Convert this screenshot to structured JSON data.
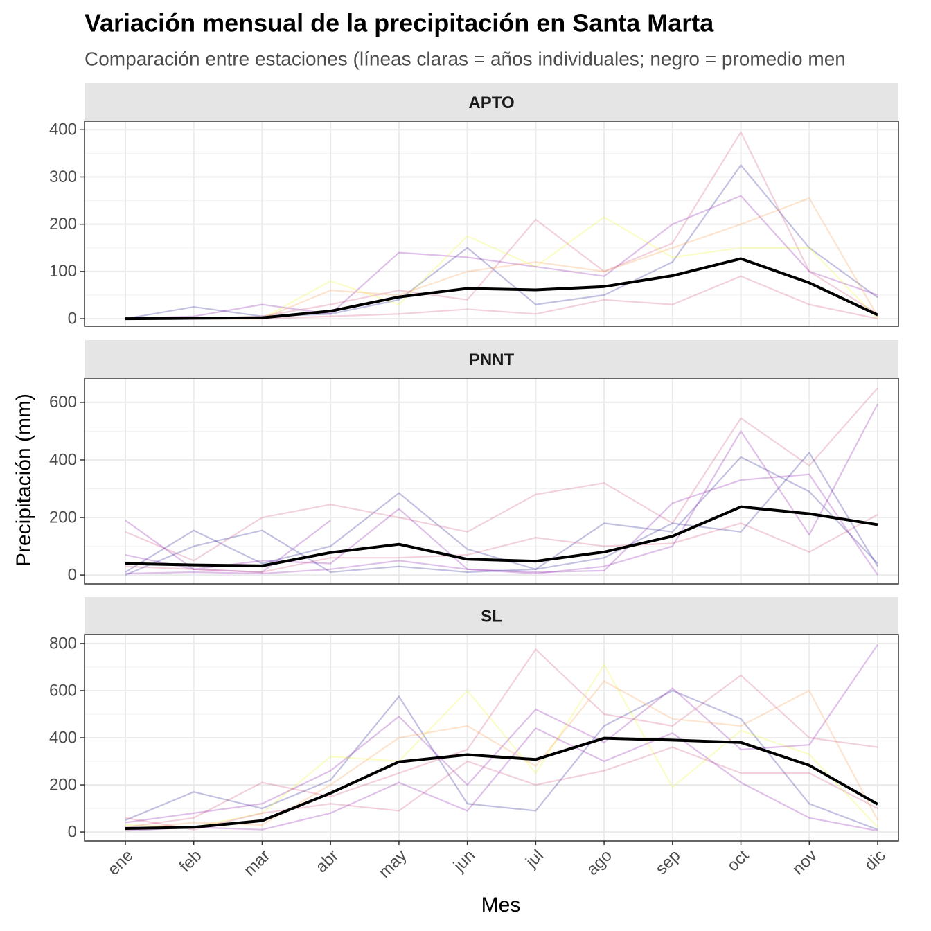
{
  "chart_data": {
    "type": "line",
    "title": "Variación mensual de la precipitación en Santa Marta",
    "subtitle": "Comparación entre estaciones (líneas claras = años individuales; negro = promedio men",
    "xlabel": "Mes",
    "ylabel": "Precipitación (mm)",
    "categories": [
      "ene",
      "feb",
      "mar",
      "abr",
      "may",
      "jun",
      "jul",
      "ago",
      "sep",
      "oct",
      "nov",
      "dic"
    ],
    "grid": true,
    "line_opacity": 0.25,
    "panels": [
      {
        "title": "APTO",
        "ylim": [
          -16,
          418
        ],
        "yticks": [
          0,
          100,
          200,
          300,
          400
        ],
        "series": [
          {
            "color": "#0d0887",
            "values": [
              0,
              25,
              5,
              10,
              40,
              150,
              30,
              50,
              120,
              325,
              150,
              45
            ]
          },
          {
            "color": "#cc4778",
            "values": [
              0,
              0,
              5,
              30,
              60,
              40,
              210,
              100,
              160,
              395,
              100,
              10
            ]
          },
          {
            "color": "#f0f921",
            "values": [
              0,
              0,
              0,
              80,
              30,
              175,
              110,
              215,
              130,
              150,
              150,
              0
            ]
          },
          {
            "color": "#7e03a8",
            "values": [
              0,
              5,
              30,
              10,
              140,
              130,
              110,
              90,
              200,
              260,
              100,
              50
            ]
          },
          {
            "color": "#f89540",
            "values": [
              0,
              0,
              0,
              60,
              50,
              100,
              120,
              100,
              150,
              200,
              255,
              5
            ]
          },
          {
            "color": "#cc4778",
            "values": [
              0,
              0,
              0,
              5,
              10,
              20,
              10,
              40,
              30,
              90,
              30,
              0
            ]
          },
          {
            "color": "#000000",
            "width": 4,
            "values": [
              0,
              1,
              2,
              16,
              46,
              64,
              61,
              68,
              91,
              127,
              76,
              8
            ]
          }
        ]
      },
      {
        "title": "PNNT",
        "ylim": [
          -31,
          684
        ],
        "yticks": [
          0,
          200,
          400,
          600
        ],
        "series": [
          {
            "color": "#0d0887",
            "values": [
              10,
              155,
              40,
              100,
              285,
              90,
              20,
              180,
              150,
              410,
              290,
              40
            ]
          },
          {
            "color": "#cc4778",
            "values": [
              150,
              50,
              200,
              245,
              200,
              150,
              280,
              320,
              180,
              545,
              380,
              650
            ]
          },
          {
            "color": "#7e03a8",
            "values": [
              190,
              20,
              10,
              190,
              null,
              null,
              null,
              null,
              null,
              null,
              null,
              null
            ]
          },
          {
            "color": "#7e03a8",
            "values": [
              5,
              10,
              5,
              20,
              50,
              20,
              5,
              30,
              100,
              500,
              140,
              595
            ]
          },
          {
            "color": "#7e03a8",
            "values": [
              70,
              20,
              50,
              40,
              230,
              20,
              10,
              15,
              250,
              330,
              350,
              0
            ]
          },
          {
            "color": "#cc4778",
            "values": [
              30,
              20,
              10,
              60,
              60,
              70,
              130,
              100,
              110,
              180,
              80,
              210
            ]
          },
          {
            "color": "#0d0887",
            "values": [
              0,
              100,
              155,
              10,
              30,
              10,
              20,
              60,
              180,
              150,
              425,
              30
            ]
          },
          {
            "color": "#000000",
            "width": 4,
            "values": [
              40,
              35,
              32,
              78,
              107,
              55,
              48,
              80,
              135,
              237,
              213,
              175
            ]
          }
        ]
      },
      {
        "title": "SL",
        "ylim": [
          -38,
          838
        ],
        "yticks": [
          0,
          200,
          400,
          600,
          800
        ],
        "series": [
          {
            "color": "#0d0887",
            "values": [
              50,
              170,
              100,
              220,
              575,
              120,
              90,
              450,
              600,
              480,
              120,
              10
            ]
          },
          {
            "color": "#cc4778",
            "values": [
              20,
              60,
              210,
              150,
              250,
              350,
              775,
              500,
              450,
              665,
              400,
              360
            ]
          },
          {
            "color": "#f0f921",
            "values": [
              30,
              20,
              80,
              320,
              300,
              600,
              250,
              710,
              190,
              430,
              330,
              20
            ]
          },
          {
            "color": "#7e03a8",
            "values": [
              40,
              80,
              120,
              260,
              490,
              200,
              520,
              380,
              610,
              350,
              370,
              795
            ]
          },
          {
            "color": "#f89540",
            "values": [
              10,
              40,
              30,
              200,
              400,
              450,
              280,
              640,
              480,
              450,
              600,
              50
            ]
          },
          {
            "color": "#cc4778",
            "values": [
              60,
              10,
              80,
              120,
              90,
              300,
              200,
              260,
              360,
              250,
              250,
              100
            ]
          },
          {
            "color": "#7e03a8",
            "values": [
              5,
              20,
              10,
              80,
              210,
              90,
              440,
              300,
              420,
              210,
              60,
              5
            ]
          },
          {
            "color": "#000000",
            "width": 4,
            "values": [
              15,
              20,
              48,
              165,
              298,
              328,
              308,
              398,
              390,
              380,
              283,
              118
            ]
          }
        ]
      }
    ]
  }
}
